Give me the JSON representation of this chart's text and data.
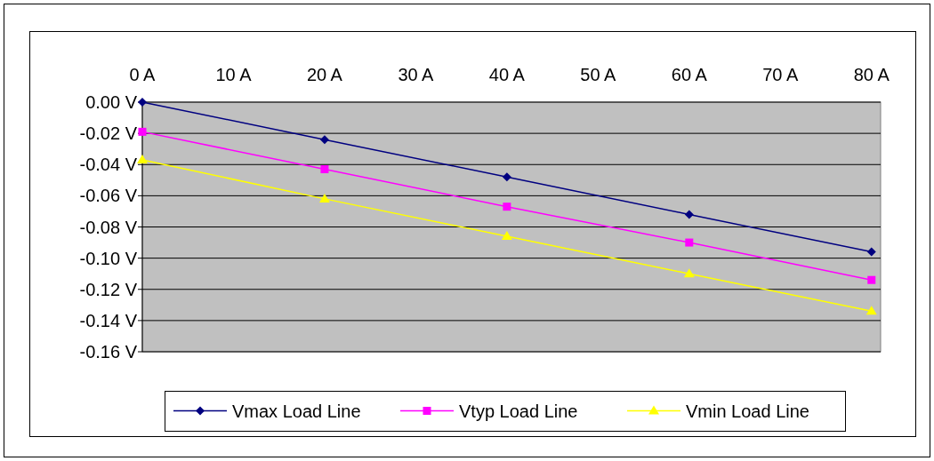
{
  "chart_data": {
    "type": "line",
    "x": [
      0,
      20,
      40,
      60,
      80
    ],
    "series": [
      {
        "name": "Vmax Load Line",
        "color": "#000080",
        "marker": "diamond",
        "values": [
          0,
          -0.024,
          -0.048,
          -0.072,
          -0.096
        ]
      },
      {
        "name": "Vtyp Load Line",
        "color": "#ff00ff",
        "marker": "square",
        "values": [
          -0.019,
          -0.043,
          -0.067,
          -0.09,
          -0.114
        ]
      },
      {
        "name": "Vmin Load Line",
        "color": "#ffff00",
        "marker": "triangle",
        "values": [
          -0.037,
          -0.062,
          -0.086,
          -0.11,
          -0.134
        ]
      }
    ],
    "xlim": [
      0,
      81
    ],
    "xticks": [
      {
        "value": 0,
        "label": "0 A"
      },
      {
        "value": 10,
        "label": "10 A"
      },
      {
        "value": 20,
        "label": "20 A"
      },
      {
        "value": 30,
        "label": "30 A"
      },
      {
        "value": 40,
        "label": "40 A"
      },
      {
        "value": 50,
        "label": "50 A"
      },
      {
        "value": 60,
        "label": "60 A"
      },
      {
        "value": 70,
        "label": "70 A"
      },
      {
        "value": 80,
        "label": "80 A"
      }
    ],
    "ylim": [
      -0.16,
      0
    ],
    "yticks": [
      {
        "value": 0,
        "label": "0.00 V"
      },
      {
        "value": -0.02,
        "label": "-0.02 V"
      },
      {
        "value": -0.04,
        "label": "-0.04 V"
      },
      {
        "value": -0.06,
        "label": "-0.06 V"
      },
      {
        "value": -0.08,
        "label": "-0.08 V"
      },
      {
        "value": -0.1,
        "label": "-0.10 V"
      },
      {
        "value": -0.12,
        "label": "-0.12 V"
      },
      {
        "value": -0.14,
        "label": "-0.14 V"
      },
      {
        "value": -0.16,
        "label": "-0.16 V"
      }
    ],
    "grid": "y",
    "legend": "bottom",
    "line_style": "solid"
  }
}
